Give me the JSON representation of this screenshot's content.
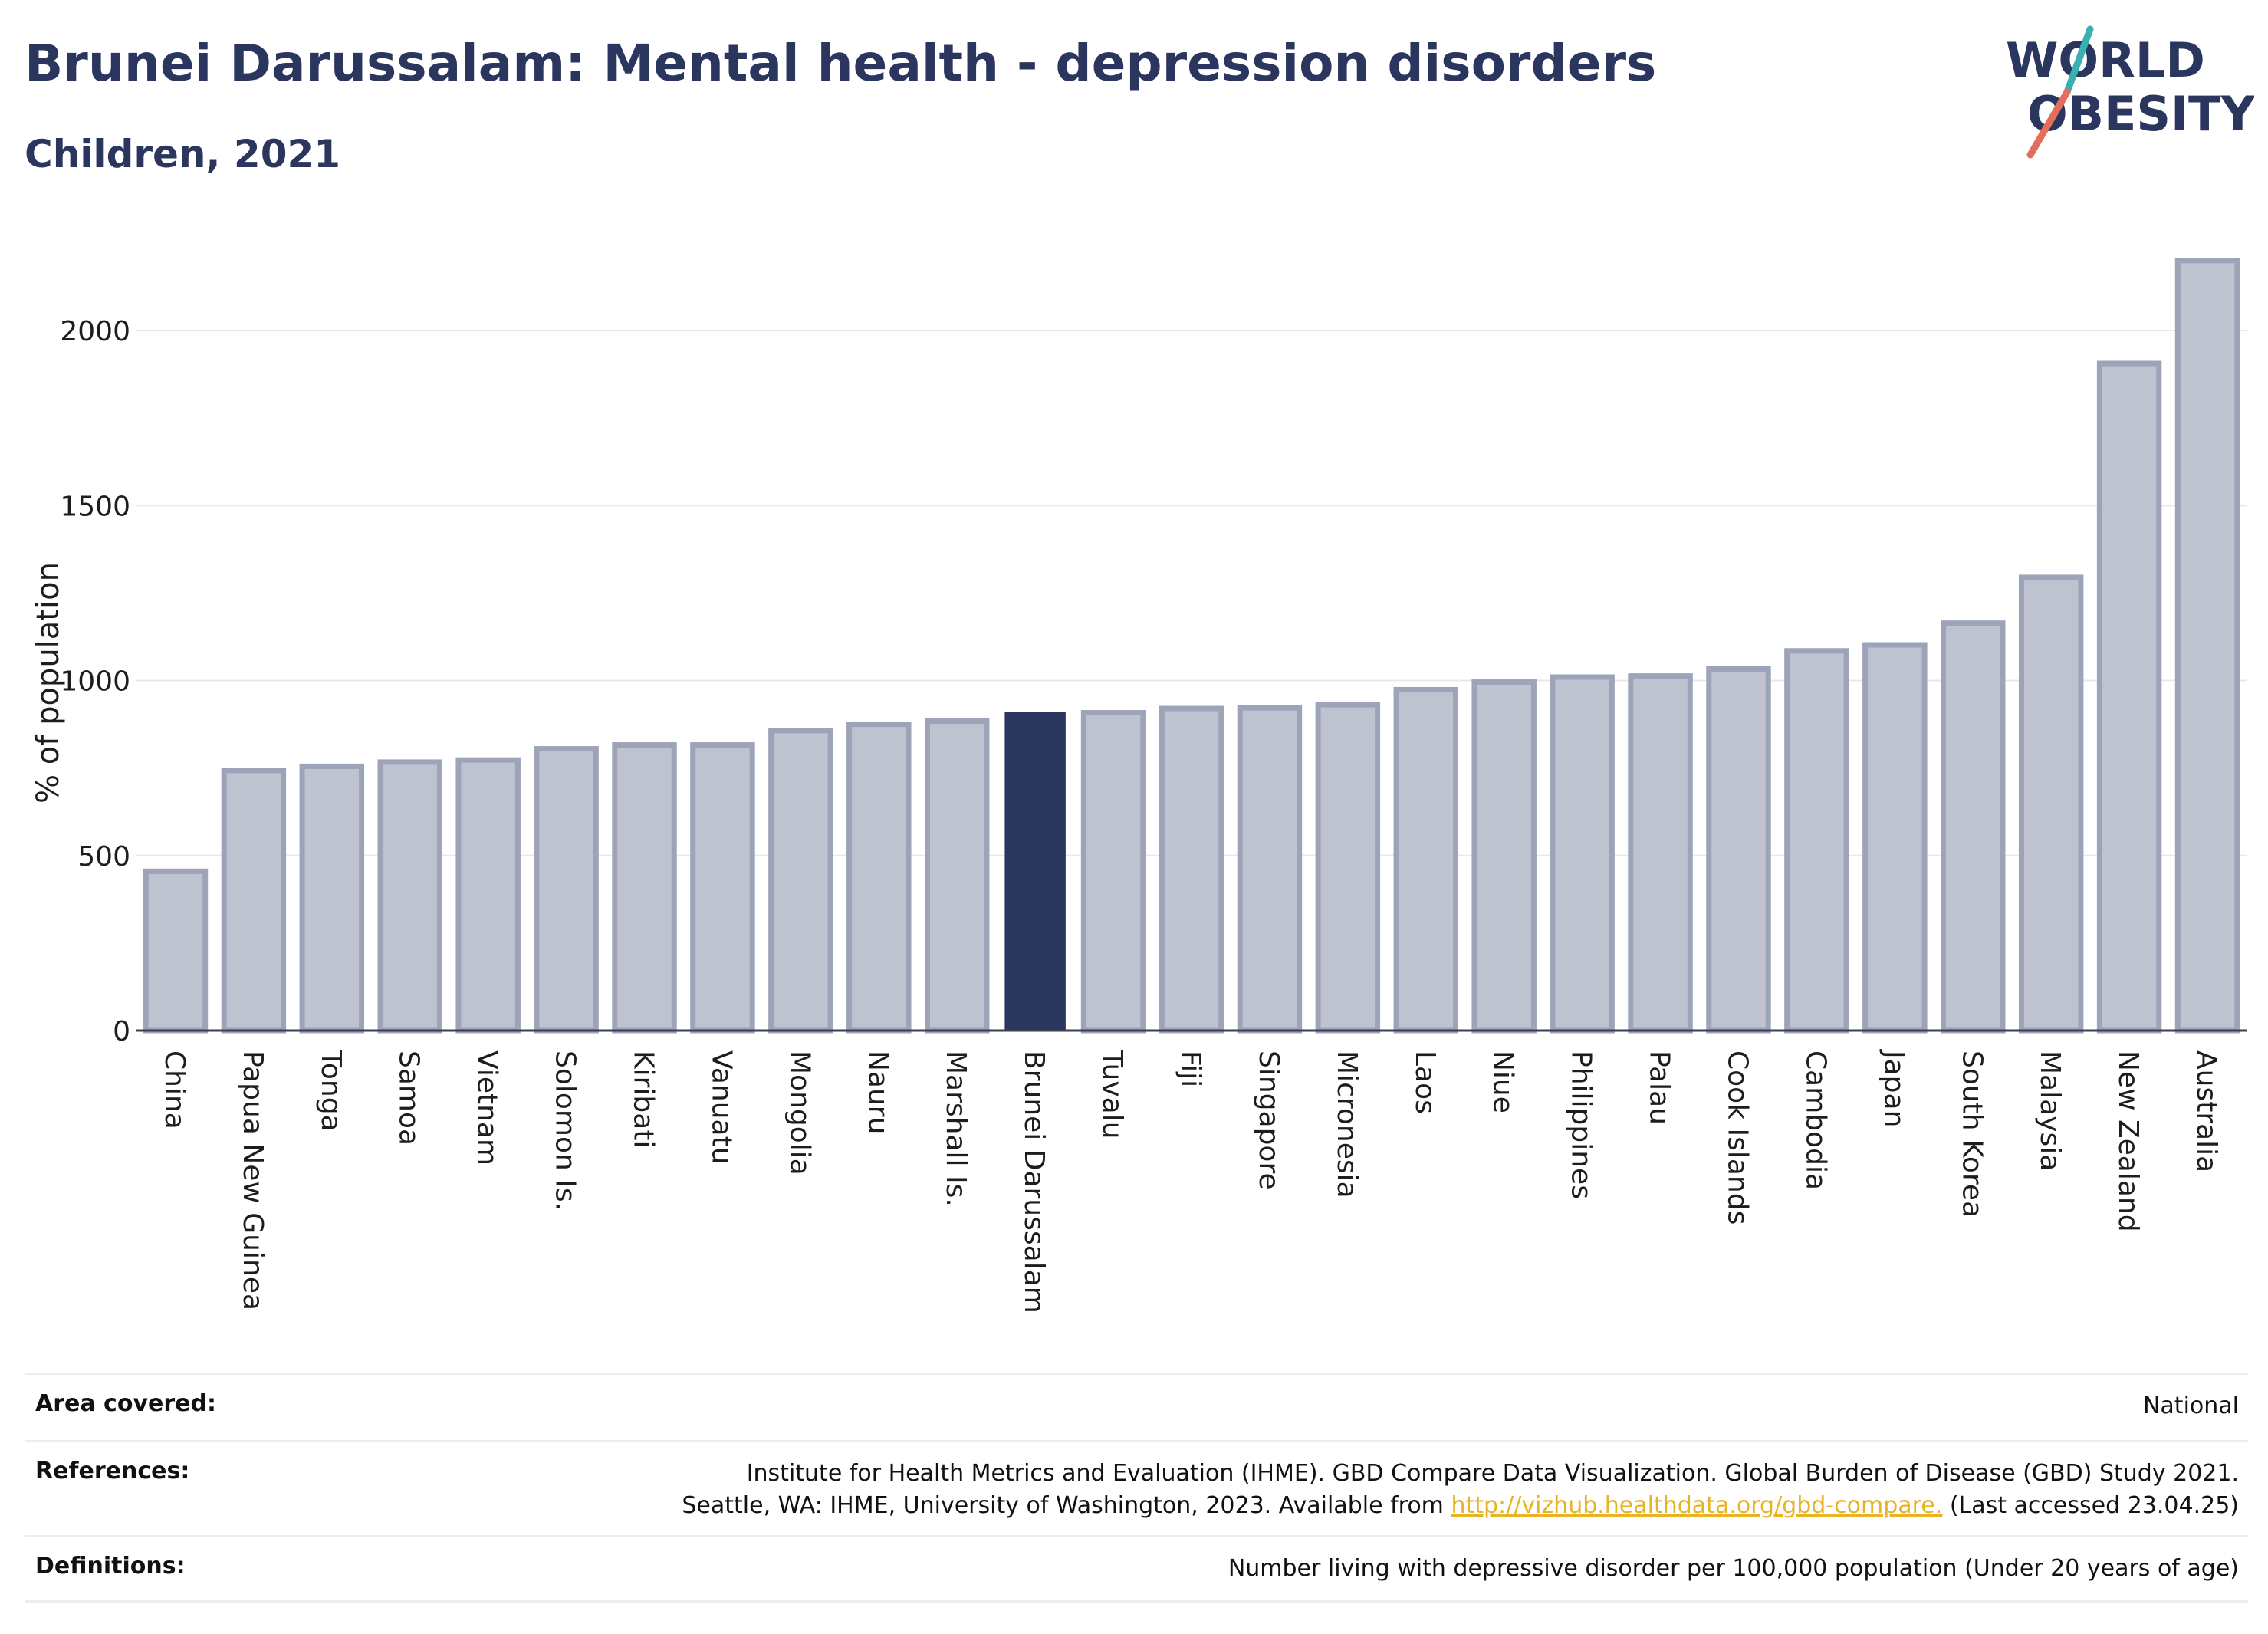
{
  "title": "Brunei Darussalam: Mental health - depression disorders",
  "subtitle": "Children, 2021",
  "logo": {
    "line1": "WORLD",
    "line2": "OBESITY"
  },
  "colors": {
    "highlight": "#2b365e",
    "bar_fill": "#bfc3d0",
    "bar_stroke": "#9da3b8",
    "grid": "#e6e8ec",
    "logo_text": "#2b365e",
    "logo_teal": "#3ab0b0",
    "logo_coral": "#e46d5c",
    "link": "#e8b324"
  },
  "chart_data": {
    "type": "bar",
    "ylabel": "% of population",
    "ylim": [
      0,
      2250
    ],
    "yticks": [
      0,
      500,
      1000,
      1500,
      2000
    ],
    "grid": true,
    "highlight": "Brunei Darussalam",
    "categories": [
      "China",
      "Papua New Guinea",
      "Tonga",
      "Samoa",
      "Vietnam",
      "Solomon Is.",
      "Kiribati",
      "Vanuatu",
      "Mongolia",
      "Nauru",
      "Marshall Is.",
      "Brunei Darussalam",
      "Tuvalu",
      "Fiji",
      "Singapore",
      "Micronesia",
      "Laos",
      "Niue",
      "Philippines",
      "Palau",
      "Cook Islands",
      "Cambodia",
      "Japan",
      "South Korea",
      "Malaysia",
      "New Zealand",
      "Australia"
    ],
    "values": [
      455,
      743,
      755,
      767,
      773,
      805,
      816,
      816,
      857,
      875,
      884,
      908,
      908,
      920,
      922,
      931,
      974,
      996,
      1010,
      1013,
      1033,
      1085,
      1102,
      1164,
      1295,
      1906,
      2200
    ]
  },
  "info": [
    {
      "key": "Area covered:",
      "lines": [
        "National"
      ]
    },
    {
      "key": "References:",
      "lines": [
        "Institute for Health Metrics and Evaluation (IHME). GBD Compare Data Visualization. Global Burden of Disease (GBD) Study 2021.",
        "Seattle, WA: IHME, University of Washington, 2023. Available from "
      ],
      "link": "http://vizhub.healthdata.org/gbd-compare.",
      "tail": " (Last accessed 23.04.25)"
    },
    {
      "key": "Definitions:",
      "lines": [
        "Number living with depressive disorder per 100,000 population (Under 20 years of age)"
      ]
    }
  ]
}
